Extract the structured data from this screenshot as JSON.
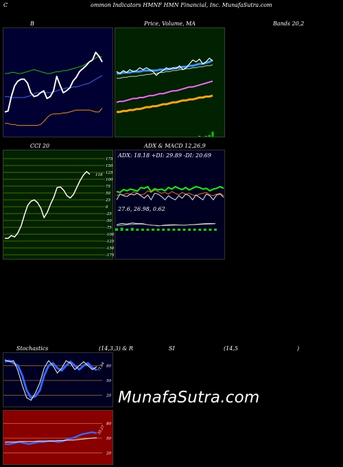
{
  "header": {
    "title": "Common Indicators HMNF HMN Financial, Inc. MunafaSutra.com",
    "c_letter": "C",
    "rest": "ommon  Indicators HMNF HMN  Financial,  Inc. MunafaSutra.com"
  },
  "labels": {
    "bollinger": "B",
    "price_volume": "Price,  Volume,  MA",
    "bands": "Bands 20,2",
    "cci": "CCI 20",
    "adx_macd": "ADX  & MACD 12,26,9",
    "stoch_title": "Stochastics",
    "stoch_params": "(14,3,3) & R",
    "rsi_si": "SI",
    "rsi_params": "(14,5",
    "rsi_close": ")"
  },
  "brand": "MunafaSutra.com",
  "colors": {
    "bollinger_bg": "#000033",
    "price_bg": "#002200",
    "cci_bg": "#002200",
    "adx_bg": "#000022",
    "stoch_bg": "#000022",
    "rsi_bg": "#880000"
  },
  "chart_data": [
    {
      "type": "line",
      "id": "bollinger",
      "x": [
        0,
        1,
        2,
        3,
        4,
        5,
        6,
        7,
        8,
        9,
        10,
        11,
        12,
        13,
        14,
        15,
        16,
        17,
        18,
        19,
        20,
        21,
        22,
        23,
        24,
        25,
        26,
        27,
        28,
        29,
        30
      ],
      "ylim": [
        0,
        100
      ],
      "series": [
        {
          "color": "#00cc00",
          "values": [
            60,
            60,
            61,
            61,
            60,
            60,
            61,
            62,
            63,
            64,
            63,
            62,
            61,
            60,
            60,
            61,
            62,
            62,
            63,
            63,
            64,
            65,
            66,
            67,
            68,
            70,
            72,
            74,
            76,
            78,
            77
          ]
        },
        {
          "color": "#3366ff",
          "values": [
            36,
            36,
            35,
            35,
            35,
            35,
            35,
            36,
            37,
            39,
            40,
            40,
            40,
            40,
            40,
            41,
            42,
            43,
            44,
            45,
            45,
            46,
            46,
            47,
            48,
            49,
            50,
            52,
            54,
            56,
            58
          ]
        },
        {
          "color": "#ff8800",
          "values": [
            8,
            8,
            7,
            7,
            6,
            6,
            6,
            6,
            6,
            6,
            6,
            7,
            10,
            14,
            17,
            18,
            18,
            18,
            19,
            19,
            20,
            21,
            22,
            22,
            22,
            22,
            22,
            21,
            20,
            20,
            24
          ]
        },
        {
          "color": "#ffffff",
          "width": 2,
          "values": [
            20,
            21,
            36,
            47,
            52,
            54,
            54,
            50,
            40,
            36,
            37,
            40,
            42,
            34,
            36,
            42,
            57,
            48,
            40,
            42,
            45,
            52,
            56,
            62,
            65,
            68,
            72,
            74,
            82,
            78,
            72
          ]
        }
      ]
    },
    {
      "type": "line",
      "id": "price",
      "x": [
        0,
        1,
        2,
        3,
        4,
        5,
        6,
        7,
        8,
        9,
        10,
        11,
        12,
        13,
        14,
        15,
        16,
        17,
        18,
        19,
        20,
        21,
        22,
        23,
        24,
        25,
        26,
        27,
        28,
        29
      ],
      "ylim": [
        0,
        100
      ],
      "series": [
        {
          "color": "#ffa500",
          "width": 3,
          "values": [
            20,
            20,
            21,
            21,
            22,
            22,
            23,
            23,
            24,
            25,
            25,
            26,
            26,
            27,
            28,
            28,
            29,
            30,
            30,
            31,
            32,
            32,
            33,
            33,
            34,
            35,
            35,
            36,
            36,
            37
          ]
        },
        {
          "color": "#ff66ff",
          "width": 2,
          "values": [
            30,
            31,
            31,
            32,
            33,
            34,
            34,
            35,
            35,
            36,
            37,
            37,
            38,
            39,
            39,
            40,
            41,
            42,
            42,
            43,
            44,
            45,
            46,
            46,
            47,
            48,
            49,
            50,
            51,
            52
          ]
        },
        {
          "color": "#3399ff",
          "width": 3,
          "values": [
            60,
            60,
            61,
            61,
            61,
            62,
            62,
            62,
            63,
            63,
            63,
            63,
            63,
            64,
            64,
            64,
            65,
            65,
            66,
            66,
            67,
            67,
            68,
            68,
            69,
            70,
            70,
            71,
            72,
            74
          ]
        },
        {
          "color": "#cccccc",
          "width": 1,
          "values": [
            55,
            55,
            56,
            56,
            57,
            57,
            57,
            58,
            58,
            59,
            59,
            60,
            60,
            61,
            61,
            62,
            62,
            63,
            63,
            64,
            64,
            65,
            65,
            66,
            66,
            67,
            67,
            68,
            68,
            69
          ]
        },
        {
          "color": "#ffffff",
          "width": 1.2,
          "values": [
            62,
            60,
            63,
            61,
            64,
            62,
            63,
            66,
            64,
            66,
            64,
            62,
            58,
            61,
            63,
            66,
            64,
            66,
            65,
            68,
            64,
            66,
            70,
            74,
            72,
            75,
            70,
            72,
            76,
            73
          ]
        }
      ],
      "volume": [
        0,
        0,
        0,
        0,
        0,
        0,
        0,
        0,
        0,
        0,
        0,
        0,
        0,
        0,
        0,
        0,
        0,
        0,
        0,
        0,
        0,
        0,
        0,
        0,
        0,
        1,
        0,
        1,
        2,
        6
      ]
    },
    {
      "type": "line",
      "id": "cci",
      "ticks": [
        175,
        150,
        125,
        100,
        75,
        50,
        25,
        0,
        -25,
        -50,
        -75,
        -100,
        -125,
        -150,
        -175
      ],
      "ylim": [
        -175,
        175
      ],
      "value_label": "118",
      "series": [
        {
          "color": "#ffffff",
          "width": 1.5,
          "values": [
            -115,
            -115,
            -105,
            -110,
            -95,
            -70,
            -30,
            5,
            20,
            25,
            15,
            -5,
            -40,
            -20,
            10,
            35,
            70,
            72,
            60,
            40,
            32,
            45,
            70,
            95,
            115,
            128,
            118
          ]
        }
      ]
    },
    {
      "type": "line",
      "id": "adx",
      "readout": "ADX: 18.18  +DI: 29.89 -DI: 20.69",
      "ylim": [
        0,
        100
      ],
      "series": [
        {
          "color": "#00ff00",
          "width": 2,
          "values": [
            50,
            48,
            55,
            52,
            56,
            54,
            51,
            60,
            58,
            62,
            50,
            57,
            54,
            56,
            52,
            60,
            56,
            62,
            58,
            55,
            60,
            54,
            58,
            62,
            60,
            56,
            58,
            52,
            56,
            58,
            62,
            58
          ]
        },
        {
          "color": "#ff6600",
          "width": 1,
          "values": [
            40,
            44,
            42,
            46,
            44,
            50,
            46,
            42,
            44,
            52,
            48,
            54,
            50,
            46,
            48,
            44,
            50,
            46,
            42,
            48,
            44,
            46,
            42,
            40,
            44,
            46,
            48,
            42,
            40,
            44,
            46,
            40
          ]
        },
        {
          "color": "#cccccc",
          "width": 1.2,
          "values": [
            30,
            44,
            40,
            38,
            44,
            42,
            46,
            40,
            34,
            42,
            30,
            46,
            44,
            38,
            30,
            40,
            34,
            30,
            40,
            34,
            44,
            40,
            30,
            42,
            36,
            30,
            44,
            40,
            30,
            42,
            44,
            36
          ]
        }
      ]
    },
    {
      "type": "bar",
      "id": "macd",
      "readout": "27.6,  26.98,  0.62",
      "ylim": [
        -1,
        1
      ],
      "series": [
        {
          "color": "#ffffff",
          "values": [
            0.4,
            0.5,
            0.45,
            0.55,
            0.5,
            0.48,
            0.4,
            0.35,
            0.3,
            0.35,
            0.38,
            0.4,
            0.38,
            0.35,
            0.4,
            0.42,
            0.45,
            0.48,
            0.5,
            0.5
          ]
        },
        {
          "color": "#aaaaaa",
          "values": [
            0.3,
            0.35,
            0.4,
            0.42,
            0.45,
            0.44,
            0.4,
            0.36,
            0.33,
            0.32,
            0.34,
            0.36,
            0.37,
            0.37,
            0.38,
            0.4,
            0.42,
            0.44,
            0.46,
            0.48
          ]
        }
      ],
      "histogram": [
        0.1,
        0.15,
        0.05,
        0.13,
        0.05,
        0.04,
        0.0,
        0.01,
        0.01,
        0.03,
        0.04,
        0.04,
        0.01,
        0.02,
        0.02,
        0.02,
        0.03,
        0.04,
        0.04,
        0.02
      ]
    },
    {
      "type": "line",
      "id": "stochastics",
      "ticks": [
        80,
        50,
        20
      ],
      "ylim": [
        0,
        100
      ],
      "value_label": "71.04",
      "series": [
        {
          "color": "#3366ff",
          "width": 3,
          "values": [
            88,
            90,
            85,
            80,
            60,
            30,
            15,
            18,
            30,
            60,
            80,
            85,
            75,
            70,
            80,
            88,
            80,
            72,
            80,
            85,
            76,
            71
          ]
        },
        {
          "color": "#ffffff",
          "width": 1,
          "values": [
            92,
            88,
            90,
            70,
            40,
            15,
            10,
            25,
            45,
            75,
            90,
            80,
            65,
            75,
            90,
            85,
            72,
            80,
            88,
            80,
            72,
            78
          ]
        }
      ]
    },
    {
      "type": "line",
      "id": "rsi",
      "ticks": [
        80,
        50,
        20
      ],
      "ylim": [
        0,
        100
      ],
      "value_label": "55.27",
      "series": [
        {
          "color": "#3366ff",
          "width": 2.5,
          "values": [
            38,
            38,
            40,
            42,
            40,
            38,
            40,
            42,
            42,
            44,
            44,
            42,
            44,
            48,
            50,
            54,
            58,
            60,
            62,
            60
          ]
        },
        {
          "color": "#ffffff",
          "width": 1,
          "values": [
            42,
            42,
            42,
            43,
            43,
            43,
            43,
            44,
            44,
            44,
            44,
            45,
            45,
            46,
            46,
            47,
            48,
            49,
            50,
            51
          ]
        }
      ]
    }
  ]
}
